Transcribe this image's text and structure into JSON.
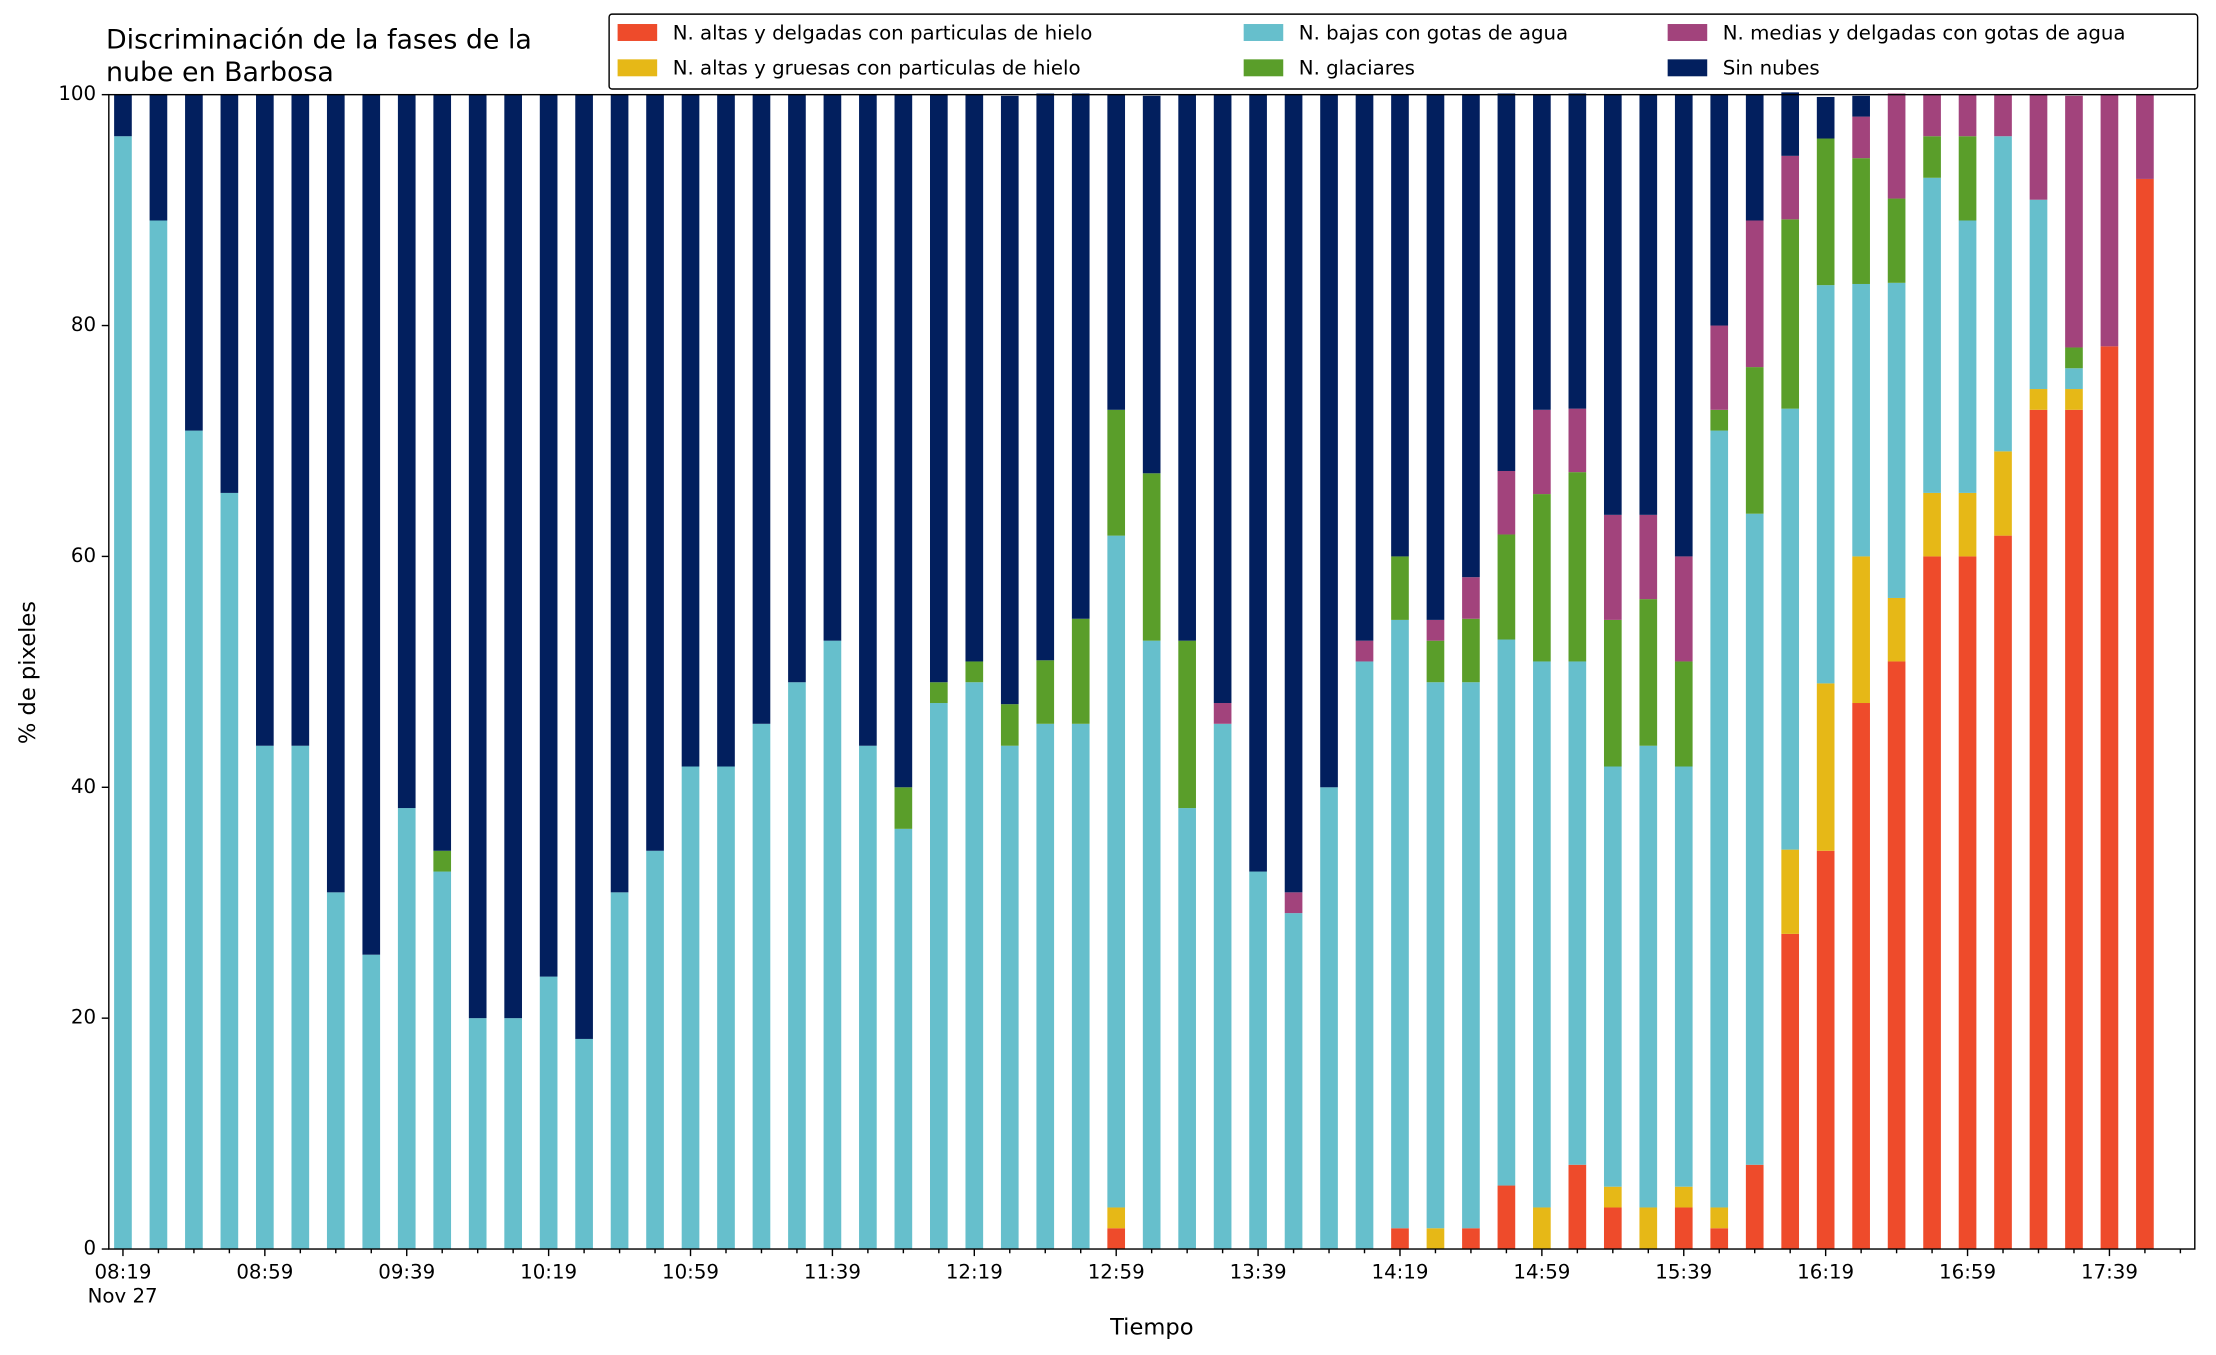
{
  "chart_data": {
    "type": "stacked_bar",
    "title_lines": [
      "Discriminación de la fases de la",
      "nube en Barbosa"
    ],
    "x_label": "Tiempo",
    "y_label": "% de pixeles",
    "date_label": "Nov 27",
    "categories": [
      "08:19",
      null,
      null,
      null,
      "08:59",
      null,
      null,
      null,
      "09:39",
      null,
      null,
      null,
      "10:19",
      null,
      null,
      null,
      "10:59",
      null,
      null,
      null,
      "11:39",
      null,
      null,
      null,
      "12:19",
      null,
      null,
      null,
      "12:59",
      null,
      null,
      null,
      "13:39",
      null,
      null,
      null,
      "14:19",
      null,
      null,
      null,
      "14:59",
      null,
      null,
      null,
      "15:39",
      null,
      null,
      null,
      "16:19",
      null,
      null,
      null,
      "16:59",
      null,
      null,
      null,
      "17:39",
      null
    ],
    "ylim": [
      0,
      100
    ],
    "yticks": [
      0,
      20,
      40,
      60,
      80,
      100
    ],
    "legend": "top-right",
    "series": [
      {
        "name": "N. altas y delgadas con particulas de hielo",
        "color": "#ee4b2b",
        "values": [
          0,
          0,
          0,
          0,
          0,
          0,
          0,
          0,
          0,
          0,
          0,
          0,
          0,
          0,
          0,
          0,
          0,
          0,
          0,
          0,
          0,
          0,
          0,
          0,
          0,
          0,
          0,
          0,
          1.8,
          0,
          0,
          0,
          0,
          0,
          0,
          0,
          1.8,
          0,
          1.8,
          5.5,
          0,
          7.3,
          3.6,
          0,
          3.6,
          1.8,
          7.3,
          27.3,
          34.5,
          47.3,
          50.9,
          60,
          60,
          61.8,
          72.7,
          72.7,
          78.2,
          92.7
        ]
      },
      {
        "name": "N. altas y gruesas con particulas de hielo",
        "color": "#e6b817",
        "values": [
          0,
          0,
          0,
          0,
          0,
          0,
          0,
          0,
          0,
          0,
          0,
          0,
          0,
          0,
          0,
          0,
          0,
          0,
          0,
          0,
          0,
          0,
          0,
          0,
          0,
          0,
          0,
          0,
          1.8,
          0,
          0,
          0,
          0,
          0,
          0,
          0,
          0,
          1.8,
          0,
          0,
          3.6,
          0,
          1.8,
          3.6,
          1.8,
          1.8,
          0,
          7.3,
          14.5,
          12.7,
          5.5,
          5.5,
          5.5,
          7.3,
          1.8,
          1.8,
          0,
          0
        ]
      },
      {
        "name": "N. bajas con gotas de agua",
        "color": "#66bfcc",
        "values": [
          96.4,
          89.1,
          70.9,
          65.5,
          43.6,
          43.6,
          30.9,
          25.5,
          38.2,
          32.7,
          20,
          20,
          23.6,
          18.2,
          30.9,
          34.5,
          41.8,
          41.8,
          45.5,
          49.1,
          52.7,
          43.6,
          36.4,
          47.3,
          49.1,
          43.6,
          45.5,
          45.5,
          58.2,
          52.7,
          38.2,
          45.5,
          32.7,
          29.1,
          40,
          50.9,
          52.7,
          47.3,
          47.3,
          47.3,
          47.3,
          43.6,
          36.4,
          40,
          36.4,
          67.3,
          56.4,
          38.2,
          34.5,
          23.6,
          27.3,
          27.3,
          23.6,
          27.3,
          16.4,
          1.8,
          0,
          0
        ]
      },
      {
        "name": "N. glaciares",
        "color": "#5a9e2a",
        "values": [
          0,
          0,
          0,
          0,
          0,
          0,
          0,
          0,
          0,
          1.8,
          0,
          0,
          0,
          0,
          0,
          0,
          0,
          0,
          0,
          0,
          0,
          0,
          3.6,
          1.8,
          1.8,
          3.6,
          5.5,
          9.1,
          10.9,
          14.5,
          14.5,
          0,
          0,
          0,
          0,
          0,
          5.5,
          3.6,
          5.5,
          9.1,
          14.5,
          16.4,
          12.7,
          12.7,
          9.1,
          1.8,
          12.7,
          16.4,
          12.7,
          10.9,
          7.3,
          3.6,
          7.3,
          0,
          0,
          1.8,
          0,
          0
        ]
      },
      {
        "name": "N. medias y delgadas con gotas de agua",
        "color": "#a2437c",
        "values": [
          0,
          0,
          0,
          0,
          0,
          0,
          0,
          0,
          0,
          0,
          0,
          0,
          0,
          0,
          0,
          0,
          0,
          0,
          0,
          0,
          0,
          0,
          0,
          0,
          0,
          0,
          0,
          0,
          0,
          0,
          0,
          1.8,
          0,
          1.8,
          0,
          1.8,
          0,
          1.8,
          3.6,
          5.5,
          7.3,
          5.5,
          9.1,
          7.3,
          9.1,
          7.3,
          12.7,
          5.5,
          0,
          3.6,
          9.1,
          3.6,
          3.6,
          3.6,
          9.1,
          21.8,
          21.8,
          7.3
        ]
      },
      {
        "name": "Sin nubes",
        "color": "#021f5e",
        "values": [
          3.6,
          10.9,
          29.1,
          34.5,
          56.4,
          56.4,
          69.1,
          74.5,
          61.8,
          65.5,
          80,
          80,
          76.4,
          81.8,
          69.1,
          65.5,
          58.2,
          58.2,
          54.5,
          50.9,
          47.3,
          56.4,
          60,
          50.9,
          49.1,
          52.7,
          49.1,
          45.5,
          27.3,
          32.7,
          47.3,
          52.7,
          67.3,
          69.1,
          60,
          47.3,
          40,
          45.5,
          41.8,
          32.7,
          27.3,
          27.3,
          36.4,
          36.4,
          40,
          20,
          10.9,
          5.5,
          3.6,
          1.8,
          0,
          0,
          0,
          0,
          0,
          0,
          0,
          0
        ]
      }
    ]
  }
}
